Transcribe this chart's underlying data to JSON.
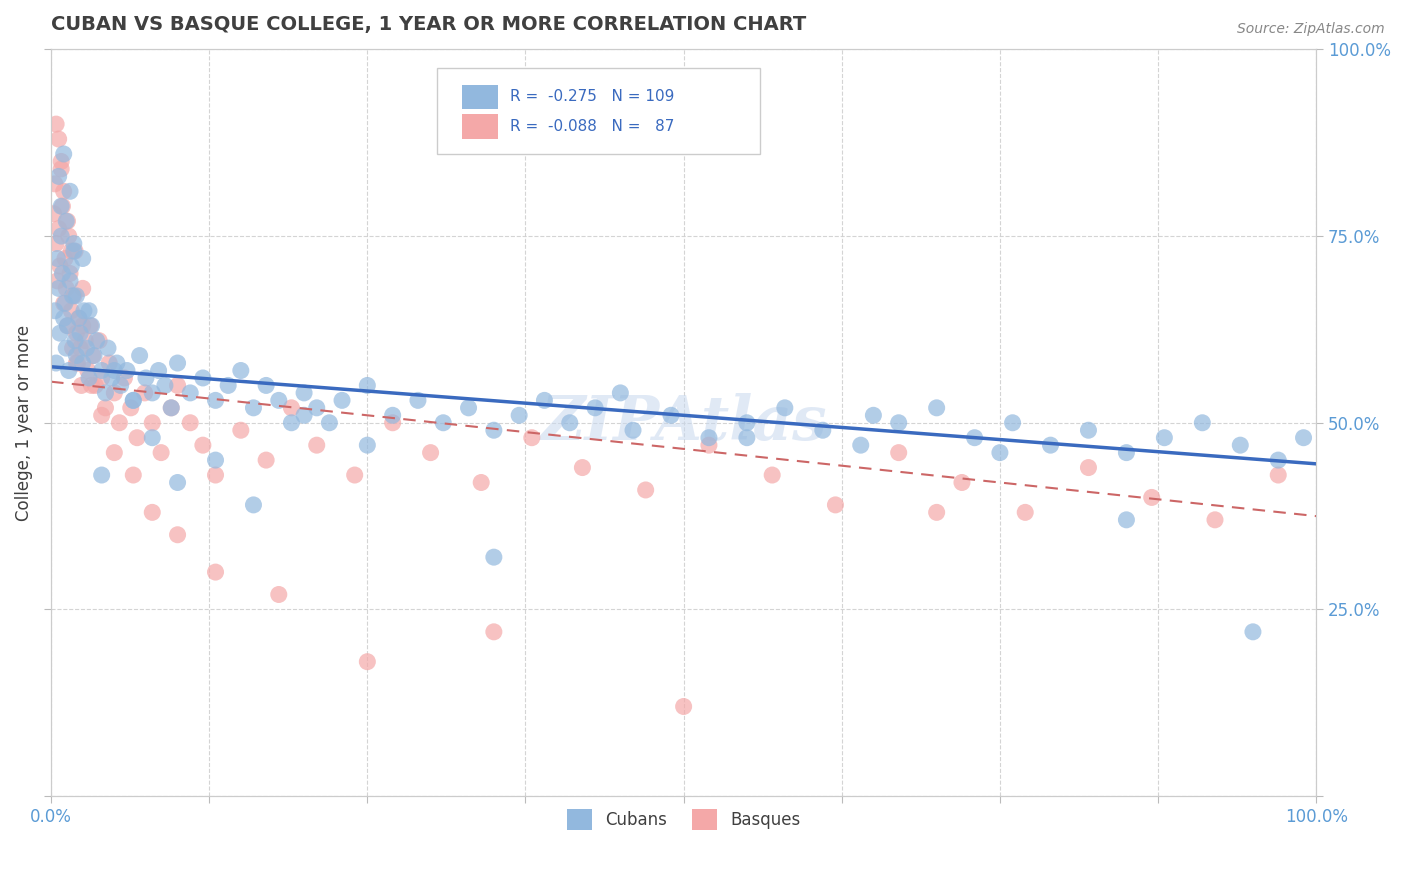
{
  "title": "CUBAN VS BASQUE COLLEGE, 1 YEAR OR MORE CORRELATION CHART",
  "source": "Source: ZipAtlas.com",
  "ylabel": "College, 1 year or more",
  "xlim": [
    0,
    1
  ],
  "ylim": [
    0,
    1
  ],
  "xticks": [
    0,
    0.125,
    0.25,
    0.375,
    0.5,
    0.625,
    0.75,
    0.875,
    1.0
  ],
  "yticks": [
    0,
    0.25,
    0.5,
    0.75,
    1.0
  ],
  "right_yticklabels": [
    "",
    "25.0%",
    "50.0%",
    "75.0%",
    "100.0%"
  ],
  "blue_color": "#92b8de",
  "pink_color": "#f4a8a8",
  "blue_line_color": "#3a6abf",
  "pink_line_color": "#cc6666",
  "legend_text_color": "#3a6abf",
  "axis_tick_color": "#5b9bd5",
  "title_color": "#404040",
  "source_color": "#888888",
  "grid_color": "#d0d0d0",
  "watermark": "ZIPAtlas",
  "blue_trend_y_start": 0.575,
  "blue_trend_y_end": 0.445,
  "pink_trend_y_start": 0.555,
  "pink_trend_y_end": 0.375,
  "cubans_x": [
    0.003,
    0.004,
    0.005,
    0.006,
    0.007,
    0.008,
    0.009,
    0.01,
    0.011,
    0.012,
    0.013,
    0.014,
    0.015,
    0.016,
    0.017,
    0.018,
    0.019,
    0.02,
    0.022,
    0.023,
    0.025,
    0.026,
    0.028,
    0.03,
    0.032,
    0.034,
    0.036,
    0.04,
    0.043,
    0.045,
    0.048,
    0.052,
    0.055,
    0.06,
    0.065,
    0.07,
    0.075,
    0.08,
    0.085,
    0.09,
    0.095,
    0.1,
    0.11,
    0.12,
    0.13,
    0.14,
    0.15,
    0.16,
    0.17,
    0.18,
    0.19,
    0.2,
    0.21,
    0.22,
    0.23,
    0.25,
    0.27,
    0.29,
    0.31,
    0.33,
    0.35,
    0.37,
    0.39,
    0.41,
    0.43,
    0.46,
    0.49,
    0.52,
    0.55,
    0.58,
    0.61,
    0.64,
    0.67,
    0.7,
    0.73,
    0.76,
    0.79,
    0.82,
    0.85,
    0.88,
    0.91,
    0.94,
    0.97,
    0.99,
    0.006,
    0.008,
    0.01,
    0.012,
    0.015,
    0.018,
    0.02,
    0.025,
    0.03,
    0.04,
    0.05,
    0.065,
    0.08,
    0.1,
    0.13,
    0.16,
    0.2,
    0.25,
    0.35,
    0.45,
    0.55,
    0.65,
    0.75,
    0.85,
    0.95
  ],
  "cubans_y": [
    0.65,
    0.58,
    0.72,
    0.68,
    0.62,
    0.75,
    0.7,
    0.64,
    0.66,
    0.6,
    0.63,
    0.57,
    0.69,
    0.71,
    0.67,
    0.73,
    0.61,
    0.59,
    0.64,
    0.62,
    0.58,
    0.65,
    0.6,
    0.56,
    0.63,
    0.59,
    0.61,
    0.57,
    0.54,
    0.6,
    0.56,
    0.58,
    0.55,
    0.57,
    0.53,
    0.59,
    0.56,
    0.54,
    0.57,
    0.55,
    0.52,
    0.58,
    0.54,
    0.56,
    0.53,
    0.55,
    0.57,
    0.52,
    0.55,
    0.53,
    0.5,
    0.54,
    0.52,
    0.5,
    0.53,
    0.55,
    0.51,
    0.53,
    0.5,
    0.52,
    0.49,
    0.51,
    0.53,
    0.5,
    0.52,
    0.49,
    0.51,
    0.48,
    0.5,
    0.52,
    0.49,
    0.47,
    0.5,
    0.52,
    0.48,
    0.5,
    0.47,
    0.49,
    0.46,
    0.48,
    0.5,
    0.47,
    0.45,
    0.48,
    0.83,
    0.79,
    0.86,
    0.77,
    0.81,
    0.74,
    0.67,
    0.72,
    0.65,
    0.43,
    0.57,
    0.53,
    0.48,
    0.42,
    0.45,
    0.39,
    0.51,
    0.47,
    0.32,
    0.54,
    0.48,
    0.51,
    0.46,
    0.37,
    0.22
  ],
  "basques_x": [
    0.002,
    0.003,
    0.004,
    0.005,
    0.006,
    0.007,
    0.008,
    0.009,
    0.01,
    0.011,
    0.012,
    0.013,
    0.014,
    0.015,
    0.016,
    0.017,
    0.018,
    0.019,
    0.02,
    0.021,
    0.022,
    0.023,
    0.024,
    0.025,
    0.027,
    0.029,
    0.031,
    0.033,
    0.035,
    0.038,
    0.04,
    0.043,
    0.046,
    0.05,
    0.054,
    0.058,
    0.063,
    0.068,
    0.074,
    0.08,
    0.087,
    0.095,
    0.1,
    0.11,
    0.12,
    0.13,
    0.15,
    0.17,
    0.19,
    0.21,
    0.24,
    0.27,
    0.3,
    0.34,
    0.38,
    0.42,
    0.47,
    0.52,
    0.57,
    0.62,
    0.67,
    0.72,
    0.77,
    0.82,
    0.87,
    0.92,
    0.97,
    0.004,
    0.006,
    0.008,
    0.01,
    0.013,
    0.016,
    0.02,
    0.025,
    0.032,
    0.04,
    0.05,
    0.065,
    0.08,
    0.1,
    0.13,
    0.18,
    0.25,
    0.35,
    0.5,
    0.7
  ],
  "basques_y": [
    0.78,
    0.82,
    0.74,
    0.69,
    0.76,
    0.71,
    0.85,
    0.79,
    0.66,
    0.72,
    0.68,
    0.63,
    0.75,
    0.7,
    0.65,
    0.6,
    0.67,
    0.73,
    0.62,
    0.58,
    0.64,
    0.6,
    0.55,
    0.68,
    0.61,
    0.57,
    0.63,
    0.59,
    0.55,
    0.61,
    0.56,
    0.52,
    0.58,
    0.54,
    0.5,
    0.56,
    0.52,
    0.48,
    0.54,
    0.5,
    0.46,
    0.52,
    0.55,
    0.5,
    0.47,
    0.43,
    0.49,
    0.45,
    0.52,
    0.47,
    0.43,
    0.5,
    0.46,
    0.42,
    0.48,
    0.44,
    0.41,
    0.47,
    0.43,
    0.39,
    0.46,
    0.42,
    0.38,
    0.44,
    0.4,
    0.37,
    0.43,
    0.9,
    0.88,
    0.84,
    0.81,
    0.77,
    0.73,
    0.58,
    0.63,
    0.55,
    0.51,
    0.46,
    0.43,
    0.38,
    0.35,
    0.3,
    0.27,
    0.18,
    0.22,
    0.12,
    0.38
  ]
}
